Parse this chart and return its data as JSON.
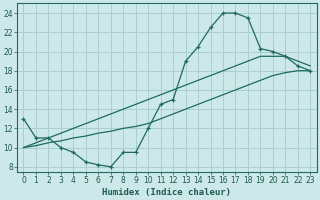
{
  "xlabel": "Humidex (Indice chaleur)",
  "bg_color": "#cce8e8",
  "grid_color": "#aacfcf",
  "line_color": "#1e6b5e",
  "xlim": [
    -0.5,
    23.5
  ],
  "ylim": [
    7.5,
    25.0
  ],
  "xticks": [
    0,
    1,
    2,
    3,
    4,
    5,
    6,
    7,
    8,
    9,
    10,
    11,
    12,
    13,
    14,
    15,
    16,
    17,
    18,
    19,
    20,
    21,
    22,
    23
  ],
  "yticks": [
    8,
    10,
    12,
    14,
    16,
    18,
    20,
    22,
    24
  ],
  "hours": [
    0,
    1,
    2,
    3,
    4,
    5,
    6,
    7,
    8,
    9,
    10,
    11,
    12,
    13,
    14,
    15,
    16,
    17,
    18,
    19,
    20,
    21,
    22,
    23
  ],
  "line_curve": [
    13,
    11,
    11,
    10,
    9.5,
    8.5,
    8.2,
    8.0,
    9.5,
    9.5,
    12.0,
    14.5,
    15.0,
    19.0,
    20.5,
    22.5,
    24.0,
    24.0,
    23.5,
    20.3,
    20.0,
    19.5,
    18.5,
    18.0
  ],
  "line_upper": [
    10,
    10.5,
    11.0,
    11.5,
    12.0,
    12.5,
    13.0,
    13.5,
    14.0,
    14.5,
    15.0,
    15.5,
    16.0,
    16.5,
    17.0,
    17.5,
    18.0,
    18.5,
    19.0,
    19.5,
    19.5,
    19.5,
    19.0,
    18.5
  ],
  "line_lower": [
    10,
    10.2,
    10.5,
    10.7,
    11.0,
    11.2,
    11.5,
    11.7,
    12.0,
    12.2,
    12.5,
    13.0,
    13.5,
    14.0,
    14.5,
    15.0,
    15.5,
    16.0,
    16.5,
    17.0,
    17.5,
    17.8,
    18.0,
    18.0
  ]
}
